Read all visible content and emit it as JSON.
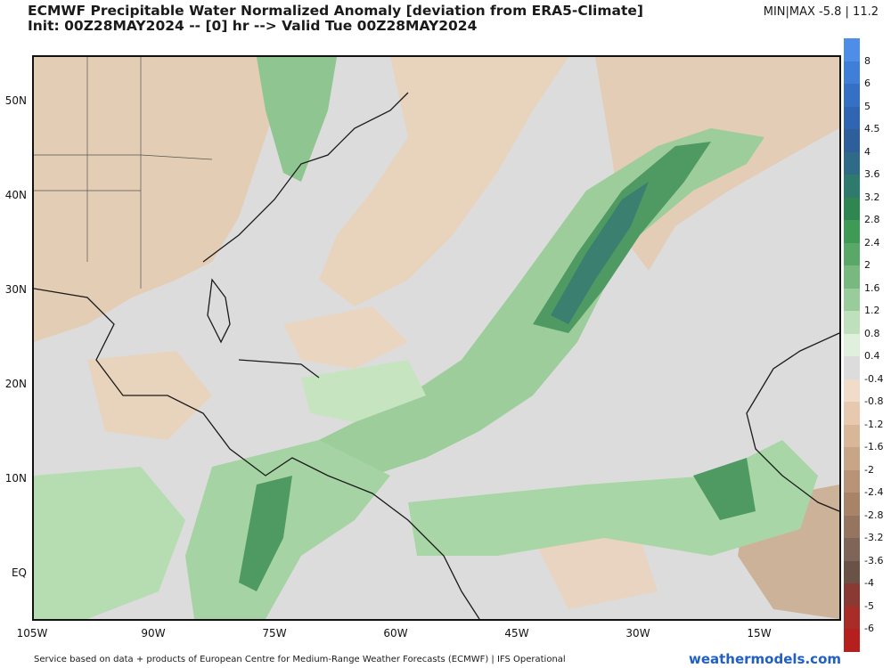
{
  "header": {
    "title_line1": "ECMWF Precipitable Water Normalized Anomaly [deviation from ERA5-Climate]",
    "title_line2": "Init: 00Z28MAY2024 -- [0] hr --> Valid Tue 00Z28MAY2024",
    "minmax": "MIN|MAX  -5.8 | 11.2"
  },
  "axes": {
    "lat_labels": [
      "50N",
      "40N",
      "30N",
      "20N",
      "10N",
      "EQ"
    ],
    "lon_labels": [
      "105W",
      "90W",
      "75W",
      "60W",
      "45W",
      "30W",
      "15W"
    ]
  },
  "colorbar": {
    "ticks": [
      "8",
      "6",
      "5",
      "4.5",
      "4",
      "3.6",
      "3.2",
      "2.8",
      "2.4",
      "2",
      "1.6",
      "1.2",
      "0.8",
      "0.4",
      "-0.4",
      "-0.8",
      "-1.2",
      "-1.6",
      "-2",
      "-2.4",
      "-2.8",
      "-3.2",
      "-3.6",
      "-4",
      "-5",
      "-6"
    ],
    "colors": [
      "#4f8ee8",
      "#3f7fd8",
      "#3570c4",
      "#2f65b2",
      "#2e5f9a",
      "#2f6b86",
      "#2e7a6c",
      "#2f8650",
      "#3f9a55",
      "#5aa868",
      "#78b97f",
      "#9acb9a",
      "#bfe0bd",
      "#dff0dc",
      "#dcdcdc",
      "#f0dcc8",
      "#e6c9ae",
      "#d8b698",
      "#c9a587",
      "#b99378",
      "#a88368",
      "#957460",
      "#7f6557",
      "#6b5247",
      "#8a3a33",
      "#a82c28",
      "#b51f1d"
    ]
  },
  "footer": {
    "credit": "Service based on data + products of European Centre for Medium-Range Weather Forecasts (ECMWF) | IFS Operational",
    "watermark": "weathermodels.com"
  }
}
